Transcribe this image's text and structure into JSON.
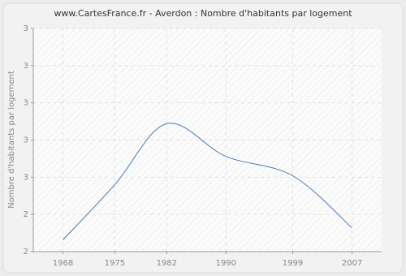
{
  "chart_data": {
    "type": "line",
    "title": "www.CartesFrance.fr - Averdon : Nombre d'habitants par logement",
    "y_label": "Nombre d'habitants par logement",
    "x": [
      1968,
      1975,
      1982,
      1990,
      1999,
      2007
    ],
    "series": [
      {
        "name": "Averdon",
        "color": "#4a7ab0",
        "values": [
          2.08,
          2.45,
          2.86,
          2.64,
          2.51,
          2.16
        ]
      }
    ],
    "xlim": [
      1964,
      2011
    ],
    "xticks": [
      1968,
      1975,
      1982,
      1990,
      1999,
      2007
    ],
    "ylim": [
      2,
      3.5
    ],
    "yticks": [
      {
        "value": 2,
        "label": "2"
      },
      {
        "value": 2.25,
        "label": "2"
      },
      {
        "value": 2.5,
        "label": "3"
      },
      {
        "value": 2.75,
        "label": "3"
      },
      {
        "value": 3,
        "label": "3"
      },
      {
        "value": 3.25,
        "label": "3"
      },
      {
        "value": 3.5,
        "label": "3"
      }
    ],
    "grid": true
  }
}
